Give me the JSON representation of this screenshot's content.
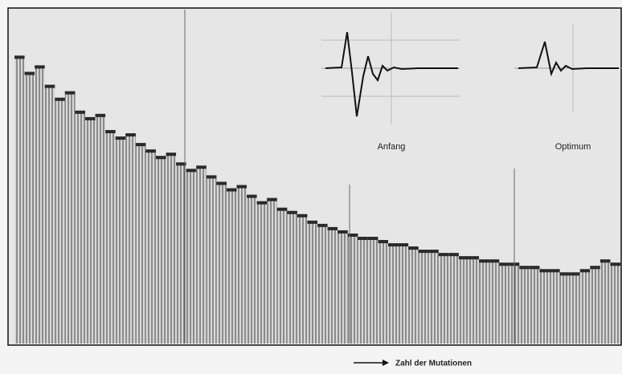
{
  "chart_data": {
    "type": "bar",
    "annotations": [
      "Anfang",
      "Optimum",
      "Zahl der Mutationen"
    ],
    "categories": [
      null,
      null,
      null,
      null,
      null,
      null,
      null,
      null,
      null,
      null,
      null,
      null,
      null,
      null,
      null,
      null,
      null,
      null,
      null,
      null,
      null,
      null,
      null,
      null,
      null,
      null,
      null,
      null,
      null,
      null,
      null,
      null,
      null,
      null,
      null,
      null,
      null,
      null,
      null,
      null,
      null,
      null,
      null,
      null,
      null,
      null,
      null,
      null,
      null,
      null,
      null,
      null,
      null,
      null,
      null,
      null,
      null,
      null,
      null,
      null
    ],
    "values": [
      89,
      84,
      86,
      80,
      76,
      78,
      72,
      70,
      71,
      66,
      64,
      65,
      62,
      60,
      58,
      59,
      56,
      54,
      55,
      52,
      50,
      48,
      49,
      46,
      44,
      45,
      42,
      41,
      40,
      38,
      37,
      36,
      35,
      34,
      33,
      33,
      32,
      31,
      31,
      30,
      29,
      29,
      28,
      28,
      27,
      27,
      26,
      26,
      25,
      25,
      24,
      24,
      23,
      23,
      22,
      22,
      23,
      24,
      26,
      25
    ],
    "color": "#2a2a2a",
    "ylim": [
      0,
      100
    ]
  }
}
